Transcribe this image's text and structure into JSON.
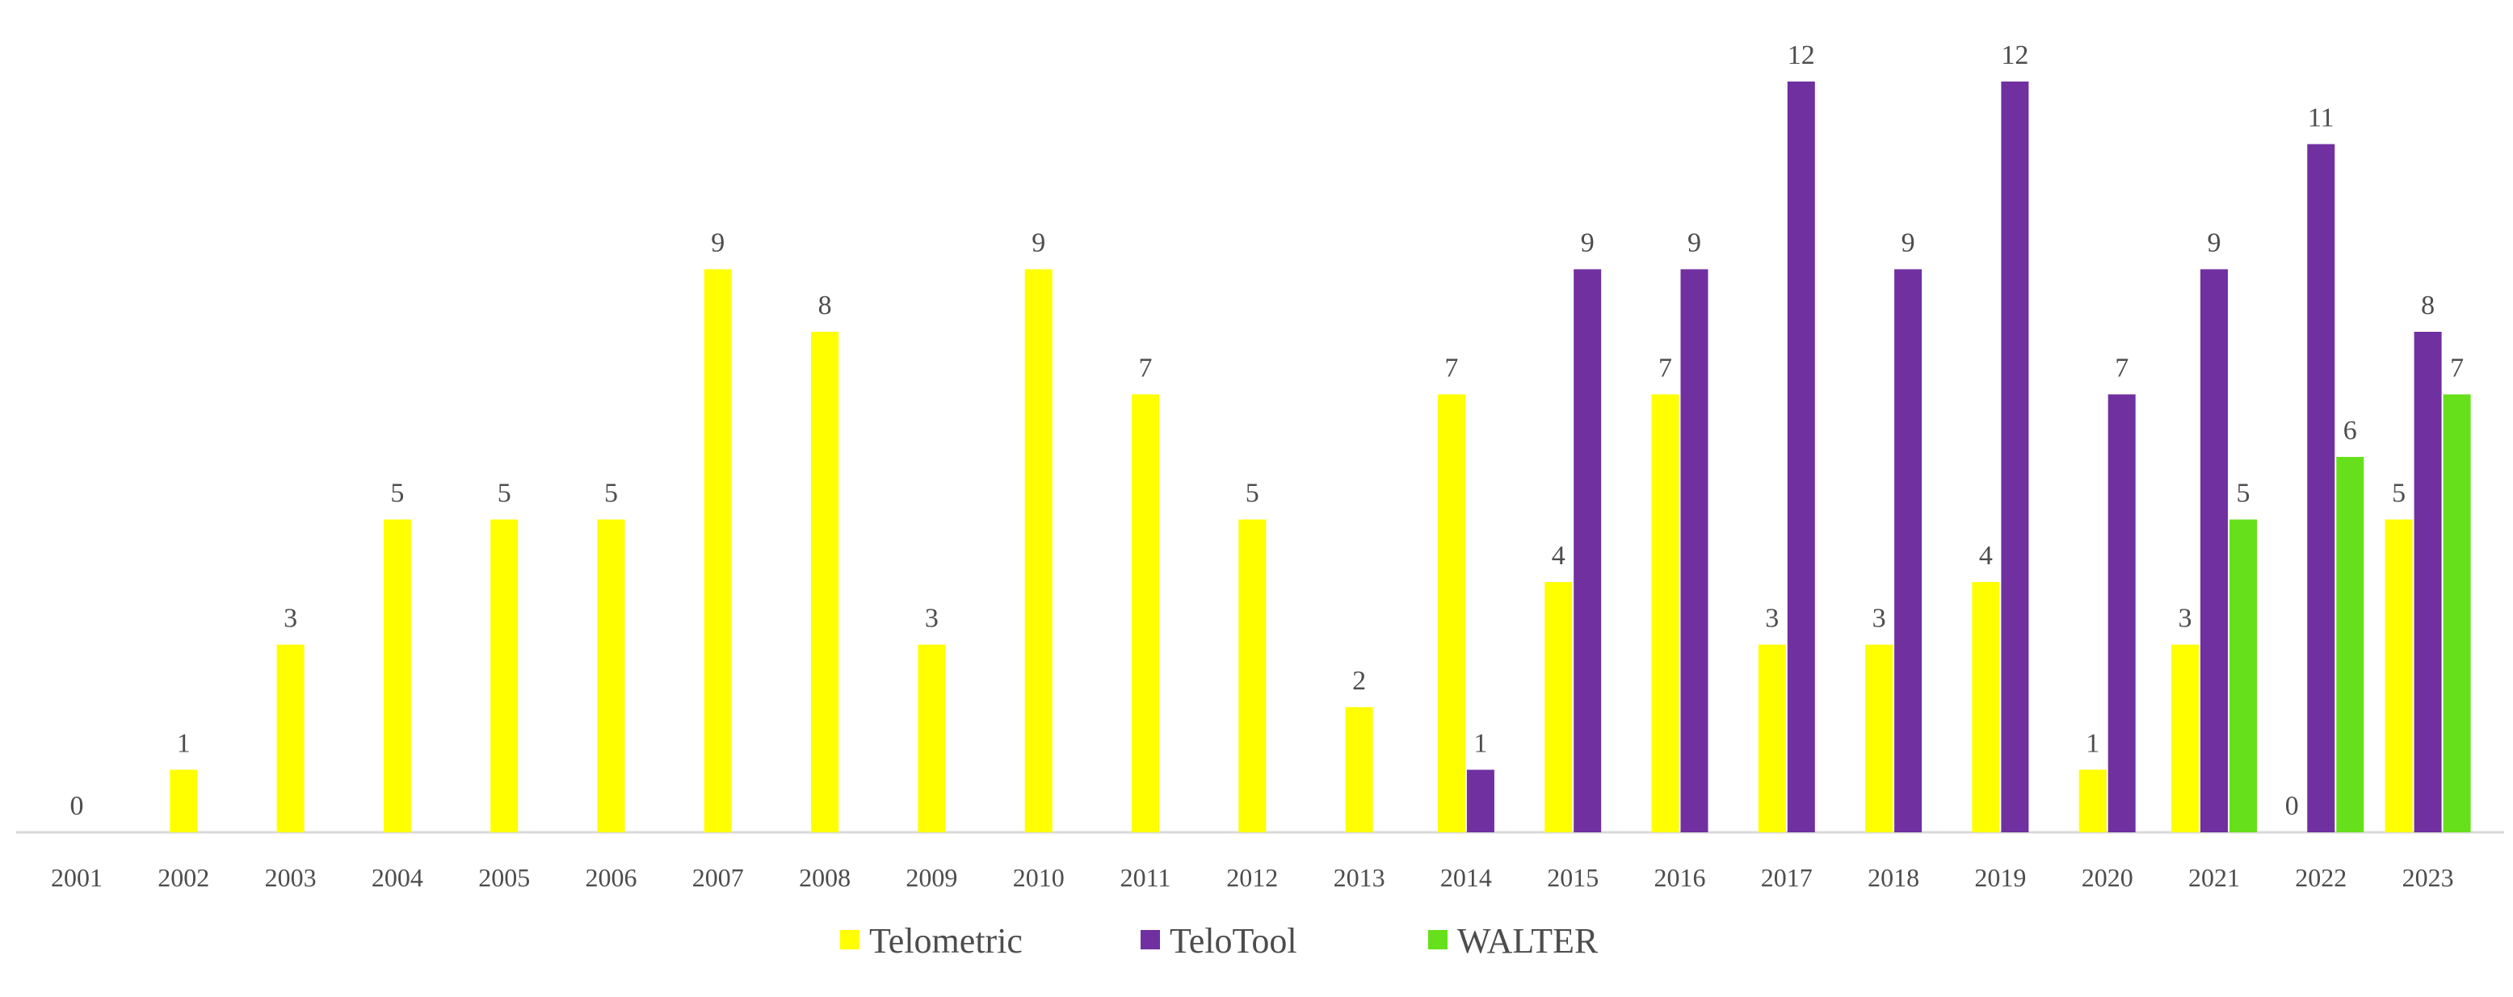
{
  "chart_data": {
    "type": "bar",
    "categories": [
      "2001",
      "2002",
      "2003",
      "2004",
      "2005",
      "2006",
      "2007",
      "2008",
      "2009",
      "2010",
      "2011",
      "2012",
      "2013",
      "2014",
      "2015",
      "2016",
      "2017",
      "2018",
      "2019",
      "2020",
      "2021",
      "2022",
      "2023"
    ],
    "series": [
      {
        "name": "Telometric",
        "color": "#ffff00",
        "values": [
          0,
          1,
          3,
          5,
          5,
          5,
          9,
          8,
          3,
          9,
          7,
          5,
          2,
          7,
          4,
          7,
          3,
          3,
          4,
          1,
          3,
          0,
          5
        ]
      },
      {
        "name": "TeloTool",
        "color": "#7030a0",
        "values": [
          null,
          null,
          null,
          null,
          null,
          null,
          null,
          null,
          null,
          null,
          null,
          null,
          null,
          1,
          9,
          9,
          12,
          9,
          12,
          7,
          9,
          11,
          8
        ]
      },
      {
        "name": "WALTER",
        "color": "#66e01a",
        "values": [
          null,
          null,
          null,
          null,
          null,
          null,
          null,
          null,
          null,
          null,
          null,
          null,
          null,
          null,
          null,
          null,
          null,
          null,
          null,
          null,
          5,
          6,
          7
        ]
      }
    ],
    "ylim": [
      0,
      12
    ],
    "grid": false,
    "legend": "bottom-center",
    "data_labels": true
  }
}
